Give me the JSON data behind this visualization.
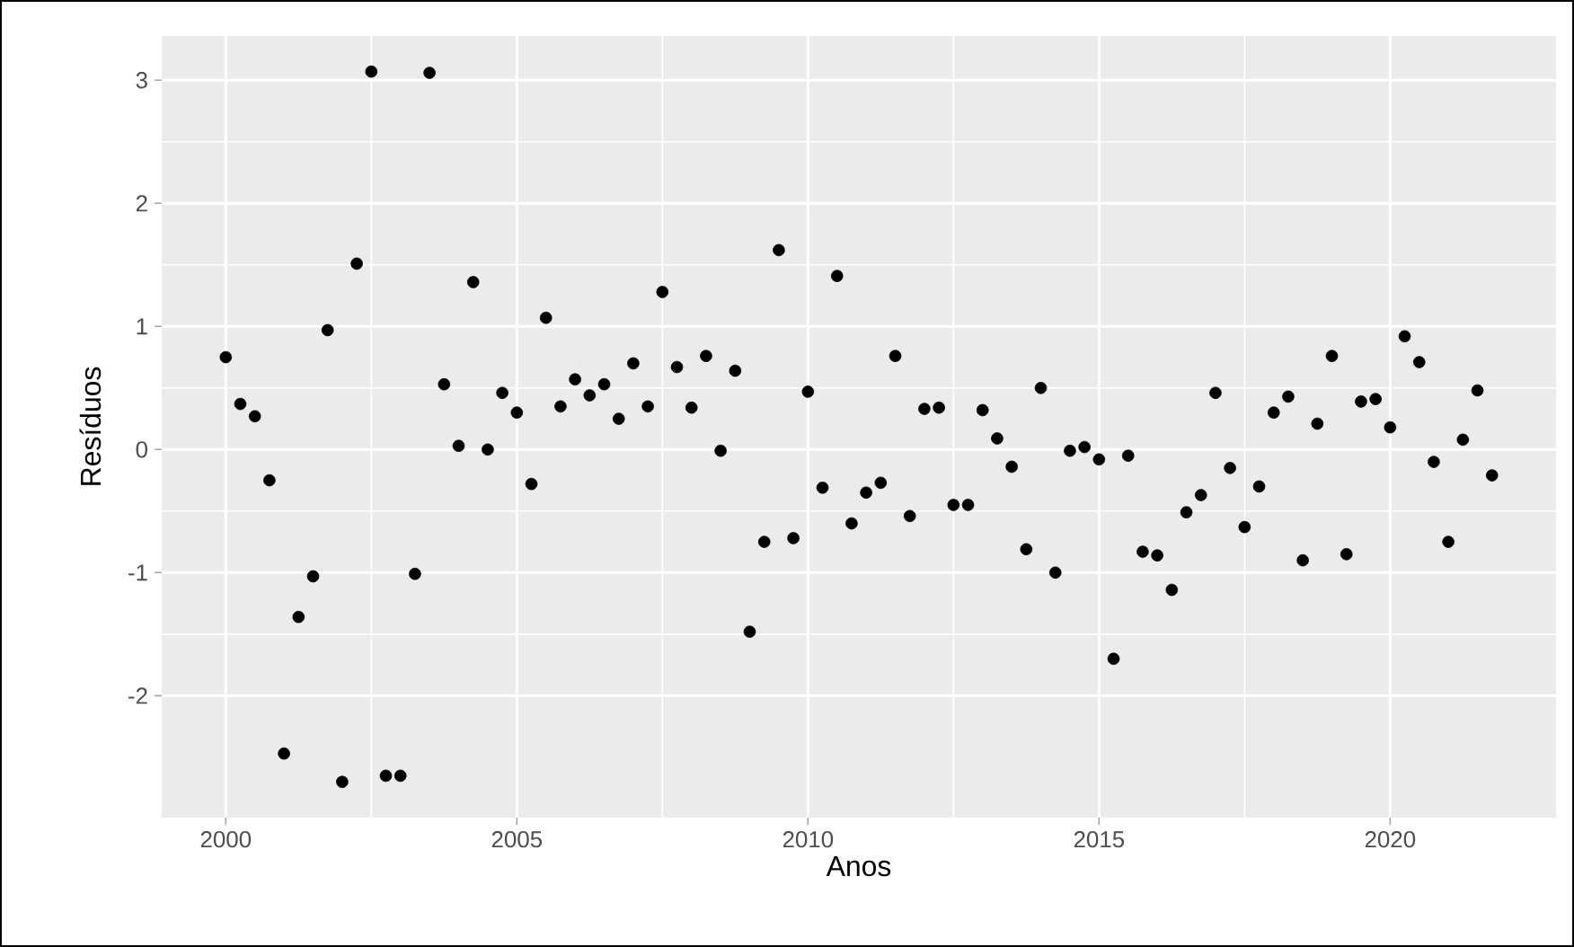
{
  "chart_data": {
    "type": "scatter",
    "xlabel": "Anos",
    "ylabel": "Resíduos",
    "xlim": [
      1998.9,
      2022.85
    ],
    "ylim": [
      -2.99,
      3.36
    ],
    "xticks": [
      2000,
      2005,
      2010,
      2015,
      2020
    ],
    "yticks": [
      -2,
      -1,
      0,
      1,
      2,
      3
    ],
    "grid": true,
    "marker": "circle",
    "series": [
      {
        "color": "#000000",
        "x": [
          2000,
          2000.25,
          2000.5,
          2000.75,
          2001,
          2001.25,
          2001.5,
          2001.75,
          2002,
          2002.25,
          2002.5,
          2002.75,
          2003,
          2003.25,
          2003.5,
          2003.75,
          2004,
          2004.25,
          2004.5,
          2004.75,
          2005,
          2005.25,
          2005.5,
          2005.75,
          2006,
          2006.25,
          2006.5,
          2006.75,
          2007,
          2007.25,
          2007.5,
          2007.75,
          2008,
          2008.25,
          2008.5,
          2008.75,
          2009,
          2009.25,
          2009.5,
          2009.75,
          2010,
          2010.25,
          2010.5,
          2010.75,
          2011,
          2011.25,
          2011.5,
          2011.75,
          2012,
          2012.25,
          2012.5,
          2012.75,
          2013,
          2013.25,
          2013.5,
          2013.75,
          2014,
          2014.25,
          2014.5,
          2014.75,
          2015,
          2015.25,
          2015.5,
          2015.75,
          2016,
          2016.25,
          2016.5,
          2016.75,
          2017,
          2017.25,
          2017.5,
          2017.75,
          2018,
          2018.25,
          2018.5,
          2018.75,
          2019,
          2019.25,
          2019.5,
          2019.75,
          2020,
          2020.25,
          2020.5,
          2020.75,
          2021,
          2021.25,
          2021.5,
          2021.75
        ],
        "values": [
          0.75,
          0.37,
          0.27,
          -0.25,
          -2.47,
          -1.36,
          -1.03,
          0.97,
          -2.7,
          1.51,
          3.07,
          -2.65,
          -2.65,
          -1.01,
          3.06,
          0.53,
          0.03,
          1.36,
          0.0,
          0.46,
          0.3,
          -0.28,
          1.07,
          0.35,
          0.57,
          0.44,
          0.53,
          0.25,
          0.7,
          0.35,
          1.28,
          0.67,
          0.34,
          0.76,
          -0.01,
          0.64,
          -1.48,
          -0.75,
          1.62,
          -0.72,
          0.47,
          -0.31,
          1.41,
          -0.6,
          -0.35,
          -0.27,
          0.76,
          -0.54,
          0.33,
          0.34,
          -0.45,
          -0.45,
          0.32,
          0.09,
          -0.14,
          -0.81,
          0.5,
          -1.0,
          -0.01,
          0.02,
          -0.08,
          -1.7,
          -0.05,
          -0.83,
          -0.86,
          -1.14,
          -0.51,
          -0.37,
          0.46,
          -0.15,
          -0.63,
          -0.3,
          0.3,
          0.43,
          -0.9,
          0.21,
          0.76,
          -0.85,
          0.39,
          0.41,
          0.18,
          0.92,
          0.71,
          -0.1,
          -0.75,
          0.08,
          0.48,
          -0.21
        ]
      }
    ]
  }
}
